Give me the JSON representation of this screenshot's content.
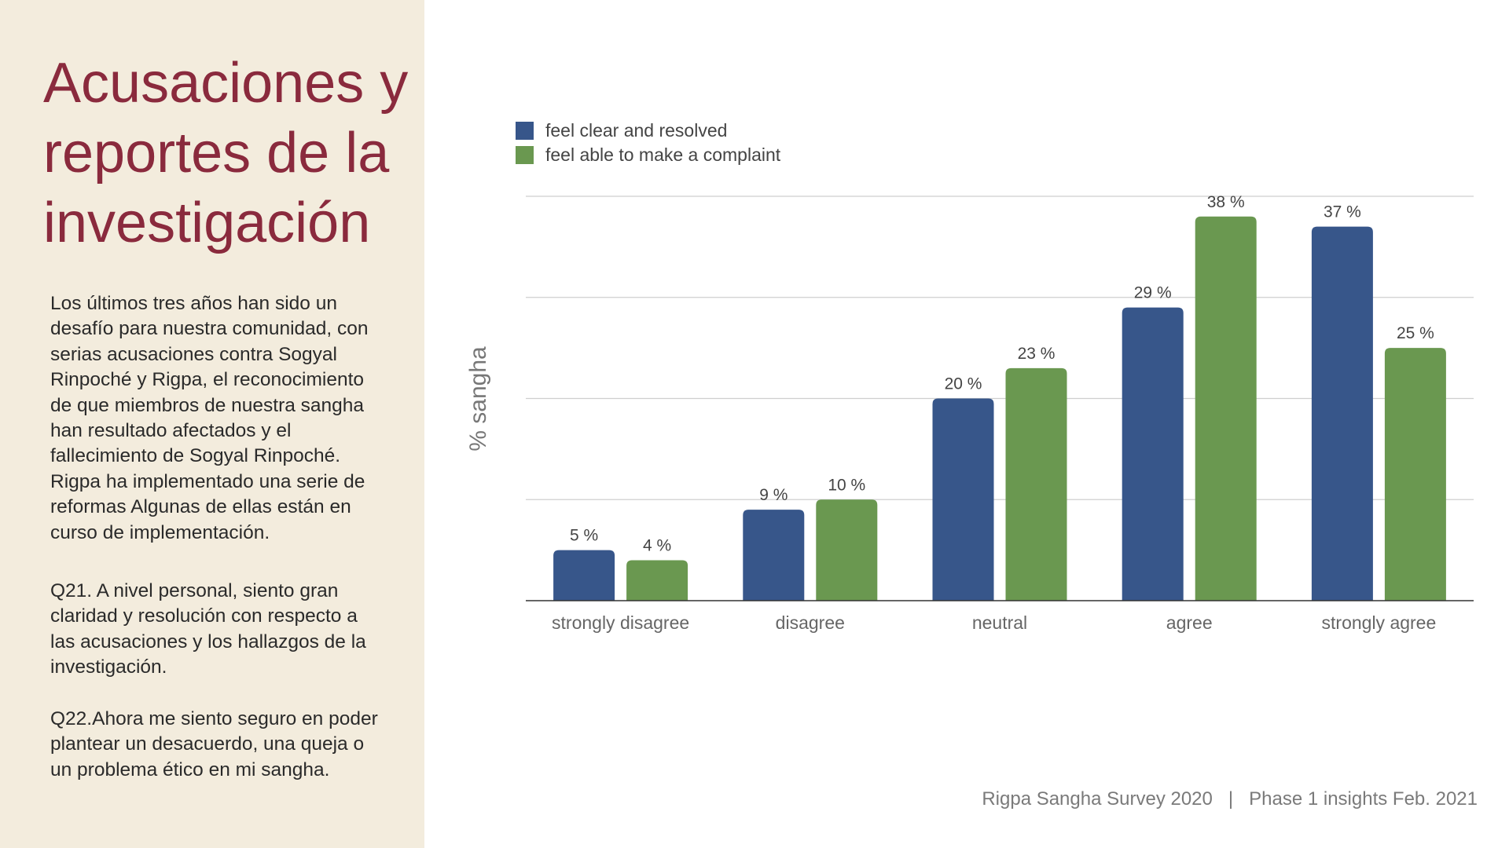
{
  "slide": {
    "title": "Acusaciones y reportes de la investigación",
    "intro": "Los últimos tres años han sido un desafío para nuestra comunidad, con serias acusaciones contra Sogyal Rinpoché y Rigpa, el reconocimiento de que miembros de nuestra sangha han resultado afectados y el fallecimiento de Sogyal Rinpoché. Rigpa ha implementado una serie de reformas Algunas de ellas están en curso de implementación.",
    "q21": "Q21. A nivel personal, siento gran claridad y resolución con respecto a las acusaciones y los hallazgos de la investigación.",
    "q22": "Q22.Ahora me siento seguro en poder plantear un desacuerdo, una queja o un problema ético en mi sangha."
  },
  "footer": {
    "survey": "Rigpa Sangha Survey 2020",
    "separator": "|",
    "phase": "Phase 1 insights Feb. 2021"
  },
  "colors": {
    "title": "#8a2a3d",
    "panel_bg": "#f3ecdd",
    "series_blue": "#37568a",
    "series_green": "#6a9850"
  },
  "chart_data": {
    "type": "bar",
    "title": "",
    "xlabel": "",
    "ylabel": "% sangha",
    "ylim": [
      0,
      40
    ],
    "grid": true,
    "legend_position": "top-left",
    "categories": [
      "strongly disagree",
      "disagree",
      "neutral",
      "agree",
      "strongly agree"
    ],
    "series": [
      {
        "name": "feel clear and resolved",
        "color": "#37568a",
        "values": [
          5,
          9,
          20,
          29,
          37
        ],
        "labels": [
          "5 %",
          "9 %",
          "20 %",
          "29 %",
          "37 %"
        ]
      },
      {
        "name": "feel able to make a complaint",
        "color": "#6a9850",
        "values": [
          4,
          10,
          23,
          38,
          25
        ],
        "labels": [
          "4 %",
          "10 %",
          "23 %",
          "38 %",
          "25 %"
        ]
      }
    ]
  }
}
